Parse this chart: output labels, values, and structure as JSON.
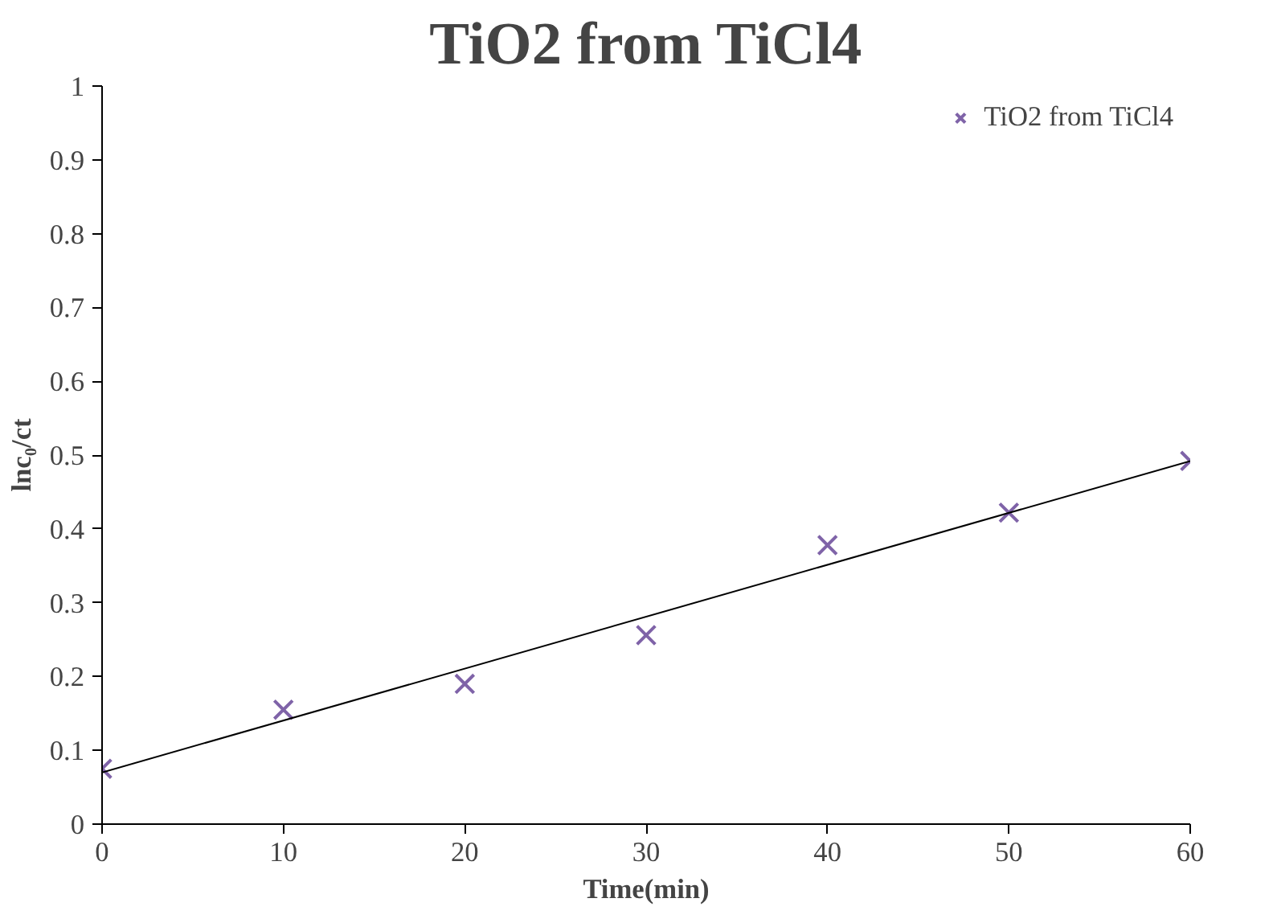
{
  "chart_data": {
    "type": "scatter",
    "title": "TiO2 from TiCl4",
    "xlabel": "Time(min)",
    "ylabel": "lnc₀/ct",
    "x": [
      0,
      10,
      20,
      30,
      40,
      50,
      60
    ],
    "series": [
      {
        "name": "TiO2 from TiCl4",
        "color": "#7f63a8",
        "values": [
          0.075,
          0.155,
          0.19,
          0.256,
          0.378,
          0.422,
          0.492
        ],
        "marker": "cross"
      },
      {
        "type": "line",
        "color": "#000000",
        "x": [
          0,
          60
        ],
        "values": [
          0.07,
          0.492
        ],
        "marker": "none"
      }
    ],
    "xlim": [
      0,
      60
    ],
    "xticks": [
      0,
      10,
      20,
      30,
      40,
      50,
      60
    ],
    "ylim": [
      0,
      1
    ],
    "yticks": [
      0,
      0.1,
      0.2,
      0.3,
      0.4,
      0.5,
      0.6,
      0.7,
      0.8,
      0.9,
      1
    ],
    "grid": false,
    "legend": "top right"
  }
}
